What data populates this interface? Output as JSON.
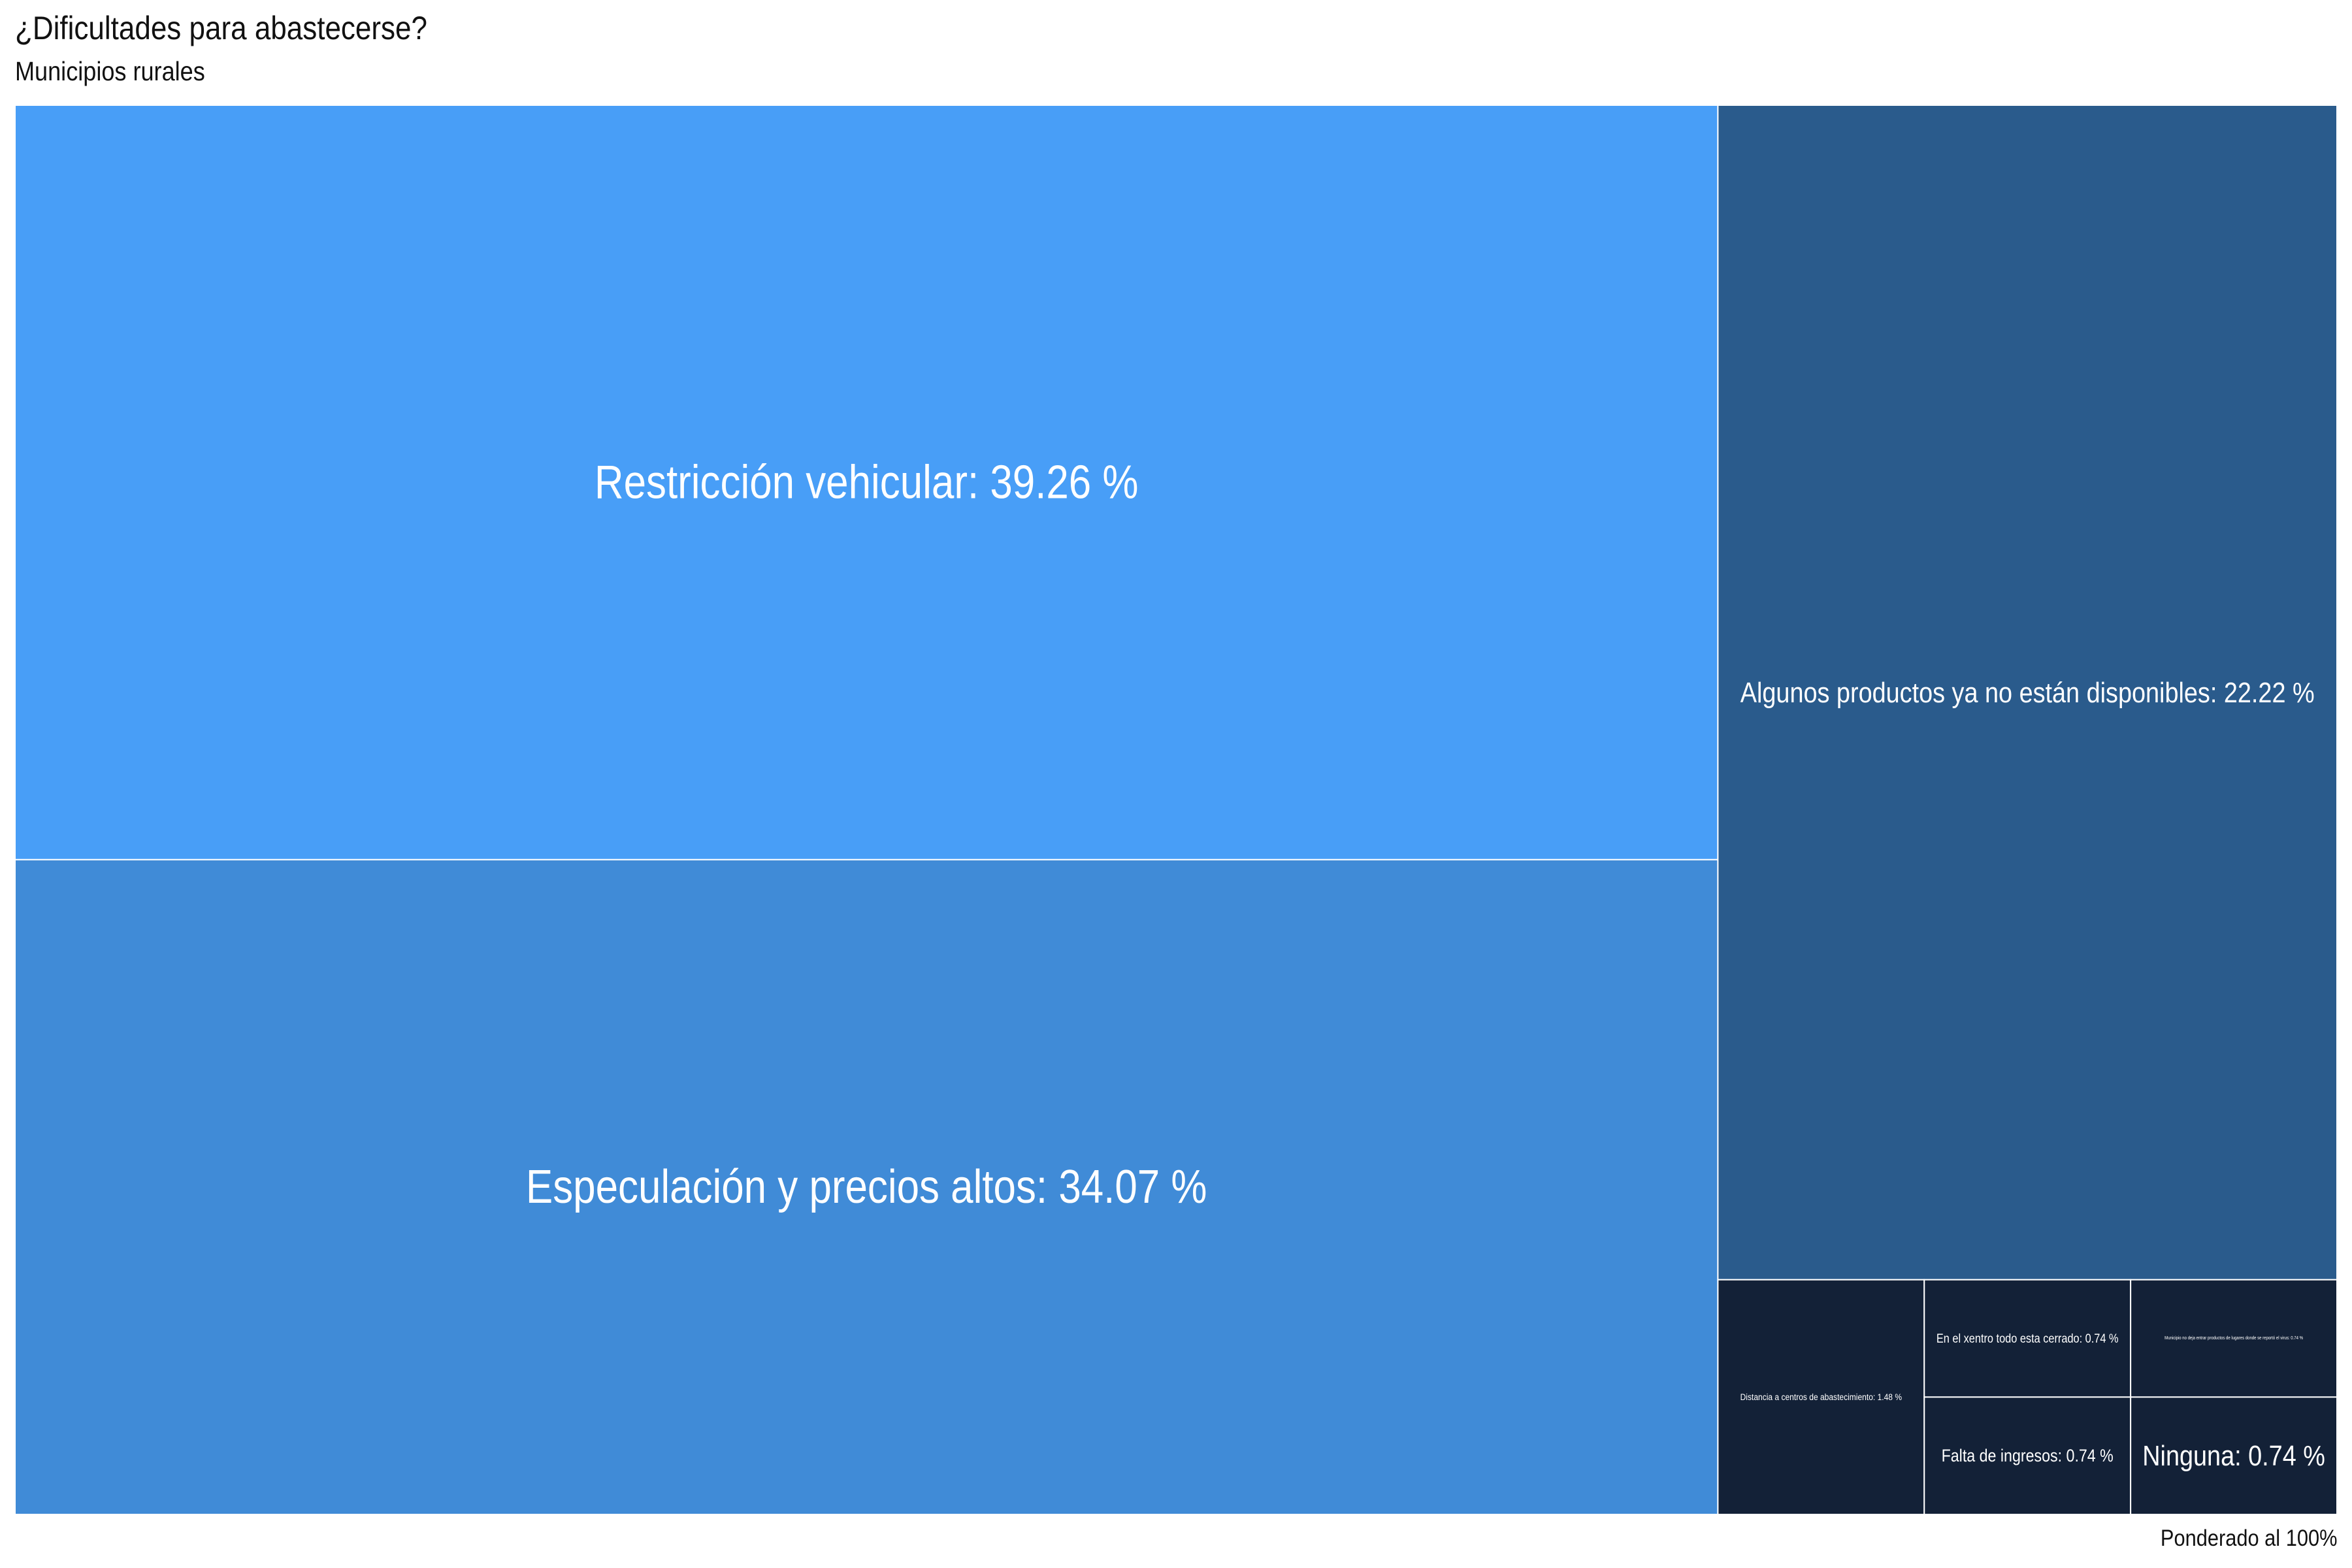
{
  "chart_data": {
    "type": "treemap",
    "title": "¿Dificultades para abastecerse?",
    "subtitle": "Municipios rurales",
    "caption": "Ponderado al 100%",
    "unit": "%",
    "items": [
      {
        "name": "Restricción vehicular",
        "value": 39.26,
        "label": "Restricción vehicular: 39.26 %",
        "color": "#489EF7"
      },
      {
        "name": "Especulación y precios altos",
        "value": 34.07,
        "label": "Especulación y precios altos: 34.07 %",
        "color": "#408BD7"
      },
      {
        "name": "Algunos productos ya no están disponibles",
        "value": 22.22,
        "label": "Algunos productos ya no están disponibles: 22.22 %",
        "color": "#2A5B8C"
      },
      {
        "name": "Distancia a centros de abastecimiento",
        "value": 1.48,
        "label": "Distancia a centros de abastecimiento: 1.48 %",
        "color": "#132137"
      },
      {
        "name": "En el xentro todo esta cerrado",
        "value": 0.74,
        "label": "En el xentro todo esta cerrado: 0.74 %",
        "color": "#132137"
      },
      {
        "name": "Municipio no deja entrar productos de lugares donde se reportó el virus",
        "value": 0.74,
        "label": "Municipio no deja entrar productos de lugares donde se reportó el virus: 0.74 %",
        "color": "#132137"
      },
      {
        "name": "Falta de ingresos",
        "value": 0.74,
        "label": "Falta de ingresos: 0.74 %",
        "color": "#132137"
      },
      {
        "name": "Ninguna",
        "value": 0.74,
        "label": "Ninguna: 0.74 %",
        "color": "#132137"
      }
    ]
  }
}
